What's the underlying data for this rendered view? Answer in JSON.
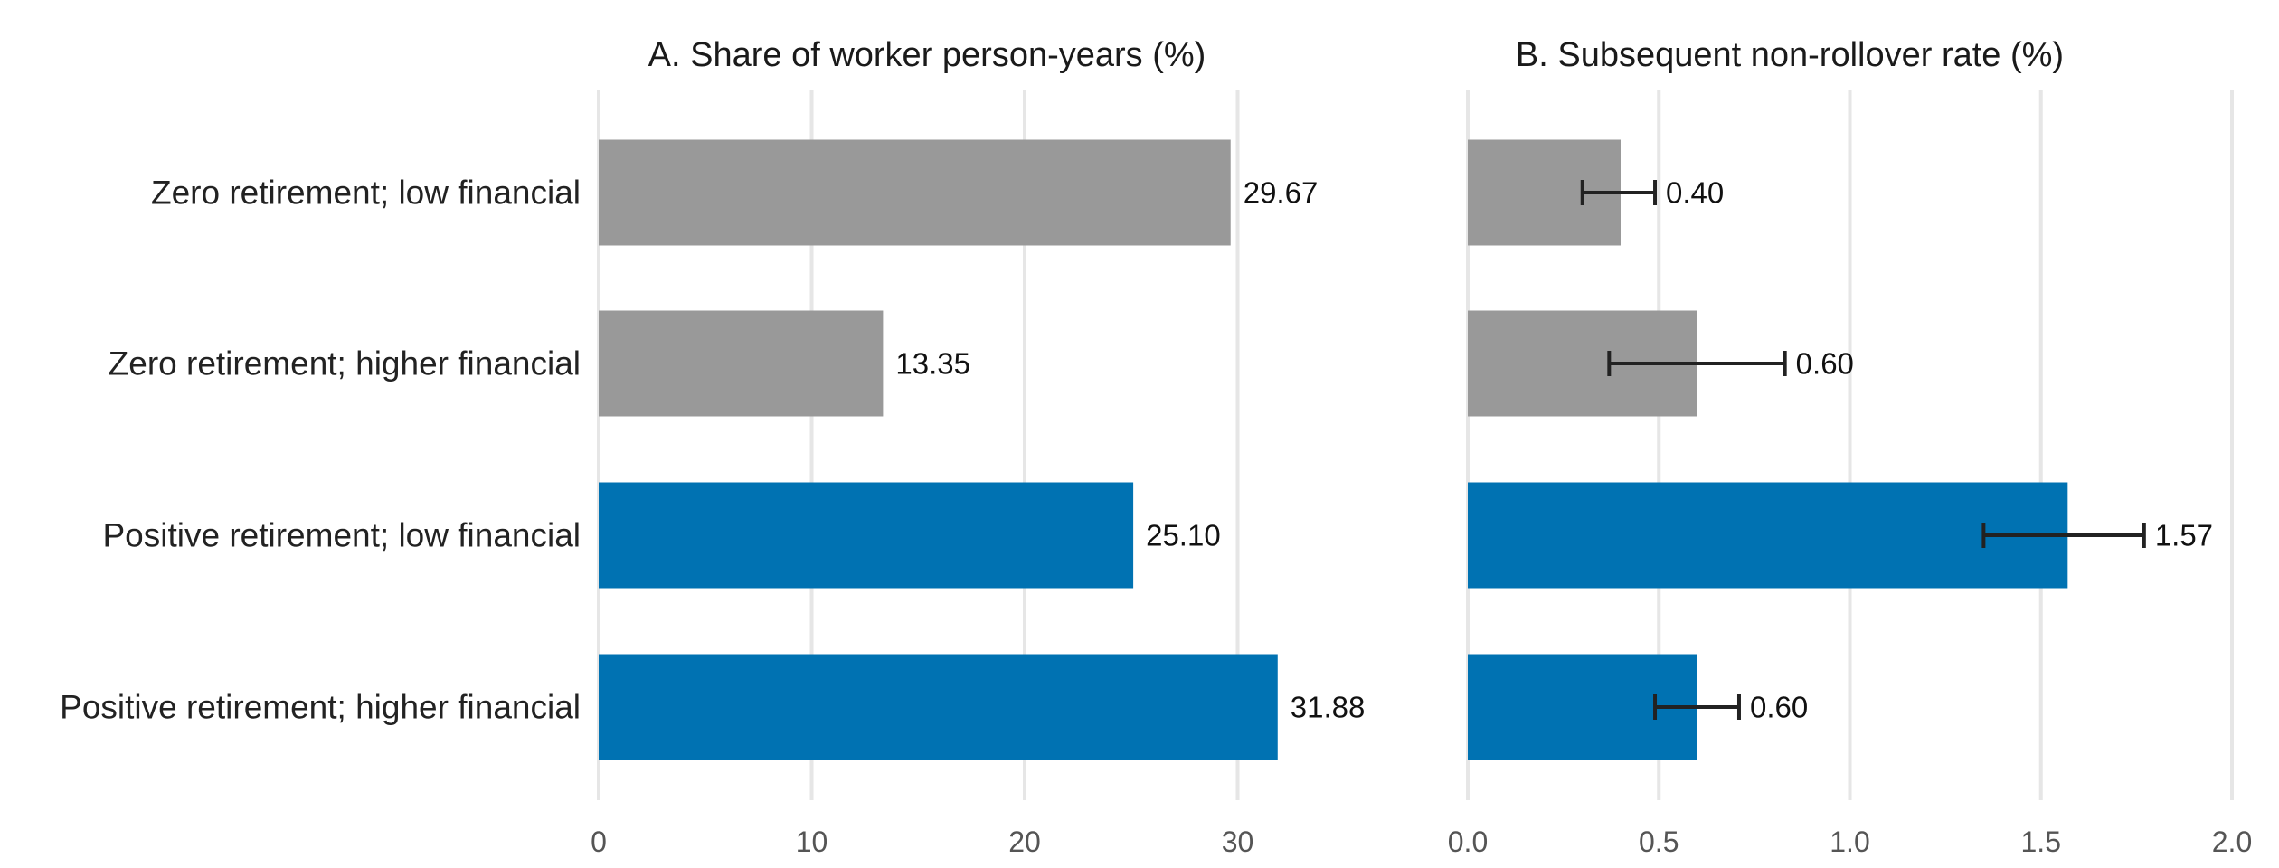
{
  "colors": {
    "zero_retirement": "#999999",
    "positive_retirement": "#0072b2"
  },
  "chart_data": [
    {
      "type": "bar",
      "orientation": "horizontal",
      "title": "A. Share of worker person-years (%)",
      "categories": [
        "Zero retirement; low financial",
        "Zero retirement; higher financial",
        "Positive retirement; low financial",
        "Positive retirement; higher financial"
      ],
      "values": [
        29.67,
        13.35,
        25.1,
        31.88
      ],
      "value_labels": [
        "29.67",
        "13.35",
        "25.10",
        "31.88"
      ],
      "xlim": [
        0,
        35
      ],
      "xticks": [
        0,
        10,
        20,
        30
      ],
      "xtick_labels": [
        "0",
        "10",
        "20",
        "30"
      ],
      "grid": true
    },
    {
      "type": "bar",
      "orientation": "horizontal",
      "title": "B. Subsequent non-rollover rate (%)",
      "categories": [
        "Zero retirement; low financial",
        "Zero retirement; higher financial",
        "Positive retirement; low financial",
        "Positive retirement; higher financial"
      ],
      "values": [
        0.4,
        0.6,
        1.57,
        0.6
      ],
      "value_labels": [
        "0.40",
        "0.60",
        "1.57",
        "0.60"
      ],
      "error_low": [
        0.3,
        0.37,
        1.35,
        0.49
      ],
      "error_high": [
        0.49,
        0.83,
        1.77,
        0.71
      ],
      "xlim": [
        0,
        2.0
      ],
      "xticks": [
        0,
        0.5,
        1.0,
        1.5,
        2.0
      ],
      "xtick_labels": [
        "0.0",
        "0.5",
        "1.0",
        "1.5",
        "2.0"
      ],
      "grid": true
    }
  ]
}
